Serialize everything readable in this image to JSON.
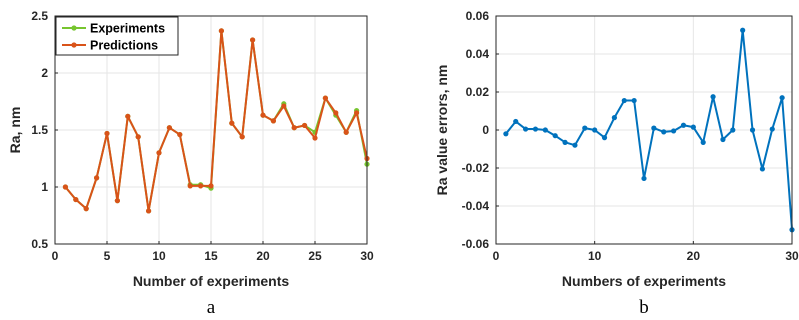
{
  "chart_data": [
    {
      "type": "line",
      "panel_label": "a",
      "xlabel": "Number of experiments",
      "ylabel": "Ra, nm",
      "xlim": [
        0,
        30
      ],
      "ylim": [
        0.5,
        2.5
      ],
      "xticks": [
        "0",
        "5",
        "10",
        "15",
        "20",
        "25",
        "30"
      ],
      "yticks": [
        "0.5",
        "1",
        "1.5",
        "2",
        "2.5"
      ],
      "grid": true,
      "legend_position": "top-left",
      "x": [
        1,
        2,
        3,
        4,
        5,
        6,
        7,
        8,
        9,
        10,
        11,
        12,
        13,
        14,
        15,
        16,
        17,
        18,
        19,
        20,
        21,
        22,
        23,
        24,
        25,
        26,
        27,
        28,
        29,
        30
      ],
      "series": [
        {
          "name": "Experiments",
          "color": "#77c52f",
          "values": [
            1.0,
            0.89,
            0.81,
            1.08,
            1.47,
            0.88,
            1.62,
            1.44,
            0.79,
            1.3,
            1.52,
            1.46,
            1.02,
            1.02,
            0.99,
            2.37,
            1.56,
            1.44,
            2.29,
            1.63,
            1.58,
            1.73,
            1.52,
            1.54,
            1.48,
            1.78,
            1.63,
            1.48,
            1.67,
            1.2
          ]
        },
        {
          "name": "Predictions",
          "color": "#d95319",
          "values": [
            1.0,
            0.89,
            0.81,
            1.08,
            1.47,
            0.88,
            1.62,
            1.44,
            0.79,
            1.3,
            1.52,
            1.46,
            1.01,
            1.01,
            1.01,
            2.37,
            1.56,
            1.44,
            2.29,
            1.63,
            1.58,
            1.71,
            1.52,
            1.54,
            1.43,
            1.78,
            1.65,
            1.48,
            1.65,
            1.25
          ]
        }
      ]
    },
    {
      "type": "line",
      "panel_label": "b",
      "xlabel": "Numbers of experiments",
      "ylabel": "Ra value errors, nm",
      "xlim": [
        0,
        30
      ],
      "ylim": [
        -0.06,
        0.06
      ],
      "xticks": [
        "0",
        "10",
        "20",
        "30"
      ],
      "yticks": [
        "-0.06",
        "-0.04",
        "-0.02",
        "0",
        "0.02",
        "0.04",
        "0.06"
      ],
      "grid": true,
      "x": [
        1,
        2,
        3,
        4,
        5,
        6,
        7,
        8,
        9,
        10,
        11,
        12,
        13,
        14,
        15,
        16,
        17,
        18,
        19,
        20,
        21,
        22,
        23,
        24,
        25,
        26,
        27,
        28,
        29,
        30
      ],
      "series": [
        {
          "color": "#0072bd",
          "values": [
            -0.002,
            0.0045,
            0.0005,
            0.0005,
            0.0,
            -0.003,
            -0.0065,
            -0.008,
            0.001,
            0.0,
            -0.004,
            0.0065,
            0.0155,
            0.0155,
            -0.0255,
            0.001,
            -0.001,
            -0.0005,
            0.0025,
            0.0015,
            -0.0065,
            0.0175,
            -0.005,
            0.0,
            0.0525,
            0.0,
            -0.0205,
            0.0005,
            0.017,
            -0.0525
          ]
        }
      ]
    }
  ]
}
